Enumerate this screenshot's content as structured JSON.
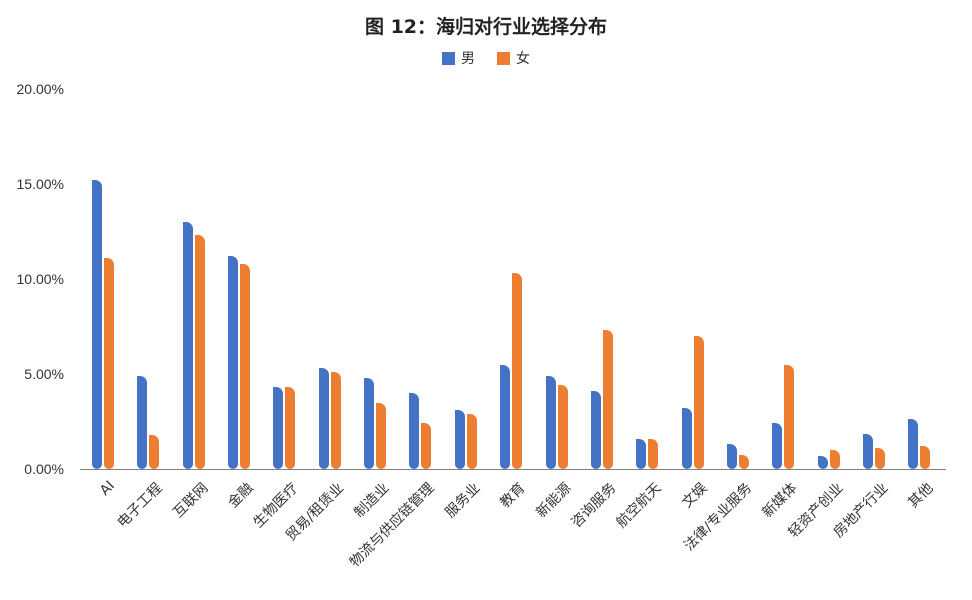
{
  "chart_data": {
    "type": "bar",
    "title": "图 12：海归对行业选择分布",
    "xlabel": "",
    "ylabel": "",
    "ylim": [
      0,
      20
    ],
    "yticks": [
      "0.00%",
      "5.00%",
      "10.00%",
      "15.00%",
      "20.00%"
    ],
    "grid": false,
    "legend_position": "top",
    "categories": [
      "AI",
      "电子工程",
      "互联网",
      "金融",
      "生物医疗",
      "贸易/租赁业",
      "制造业",
      "物流与供应链管理",
      "服务业",
      "教育",
      "新能源",
      "咨询服务",
      "航空航天",
      "文娱",
      "法律/专业服务",
      "新媒体",
      "轻资产创业",
      "房地产行业",
      "其他"
    ],
    "series": [
      {
        "name": "男",
        "color": "#4472C4",
        "values": [
          15.2,
          4.9,
          13.0,
          11.2,
          4.3,
          5.3,
          4.8,
          4.0,
          3.1,
          5.5,
          4.9,
          4.1,
          1.6,
          3.2,
          1.3,
          2.4,
          0.7,
          1.85,
          2.65
        ]
      },
      {
        "name": "女",
        "color": "#ED7D31",
        "values": [
          11.1,
          1.8,
          12.3,
          10.8,
          4.3,
          5.1,
          3.5,
          2.4,
          2.9,
          10.3,
          4.4,
          7.3,
          1.6,
          7.0,
          0.75,
          5.5,
          1.0,
          1.1,
          1.2
        ]
      }
    ]
  },
  "legend": {
    "male": "男",
    "female": "女"
  }
}
